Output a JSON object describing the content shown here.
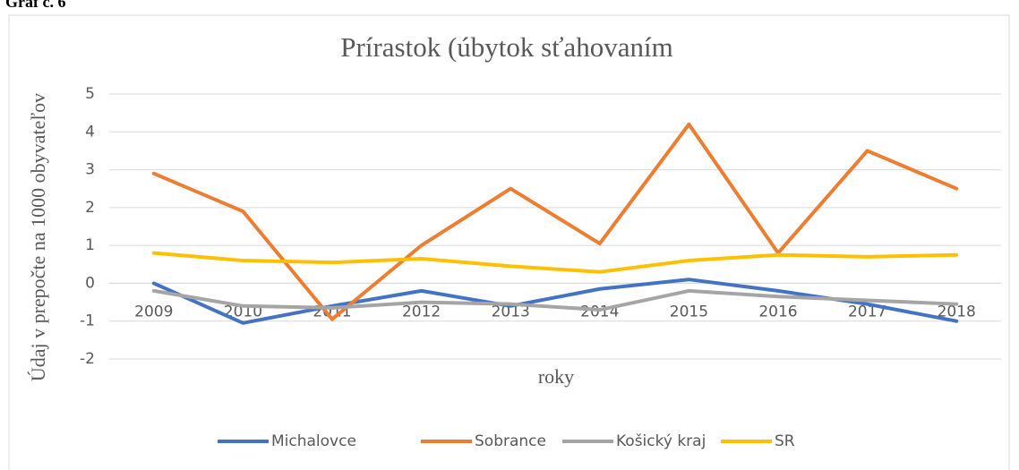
{
  "caption": "Graf č. 6",
  "chart_data": {
    "type": "line",
    "title": "Prírastok (úbytok sťahovaním",
    "x_label": "roky",
    "y_label": "Údaj v prepočte na 1000 obyvateľov",
    "categories": [
      "2009",
      "2010",
      "2011",
      "2012",
      "2013",
      "2014",
      "2015",
      "2016",
      "2017",
      "2018"
    ],
    "series": [
      {
        "name": "Michalovce",
        "color": "#4472c4",
        "values": [
          0,
          -1.05,
          -0.6,
          -0.2,
          -0.6,
          -0.15,
          0.1,
          -0.2,
          -0.55,
          -1.0
        ]
      },
      {
        "name": "Sobrance",
        "color": "#ed7d31",
        "values": [
          2.9,
          1.9,
          -0.95,
          1.0,
          2.5,
          1.05,
          4.2,
          0.8,
          3.5,
          2.5
        ]
      },
      {
        "name": "Košický kraj",
        "color": "#a5a5a5",
        "values": [
          -0.2,
          -0.6,
          -0.65,
          -0.5,
          -0.55,
          -0.7,
          -0.2,
          -0.35,
          -0.45,
          -0.55
        ]
      },
      {
        "name": "SR",
        "color": "#ffc000",
        "values": [
          0.8,
          0.6,
          0.55,
          0.65,
          0.45,
          0.3,
          0.6,
          0.75,
          0.7,
          0.75
        ]
      }
    ],
    "ylim": [
      -2,
      5
    ],
    "yticks": [
      -2,
      -1,
      0,
      1,
      2,
      3,
      4,
      5
    ],
    "grid": true,
    "legend": "bottom"
  }
}
